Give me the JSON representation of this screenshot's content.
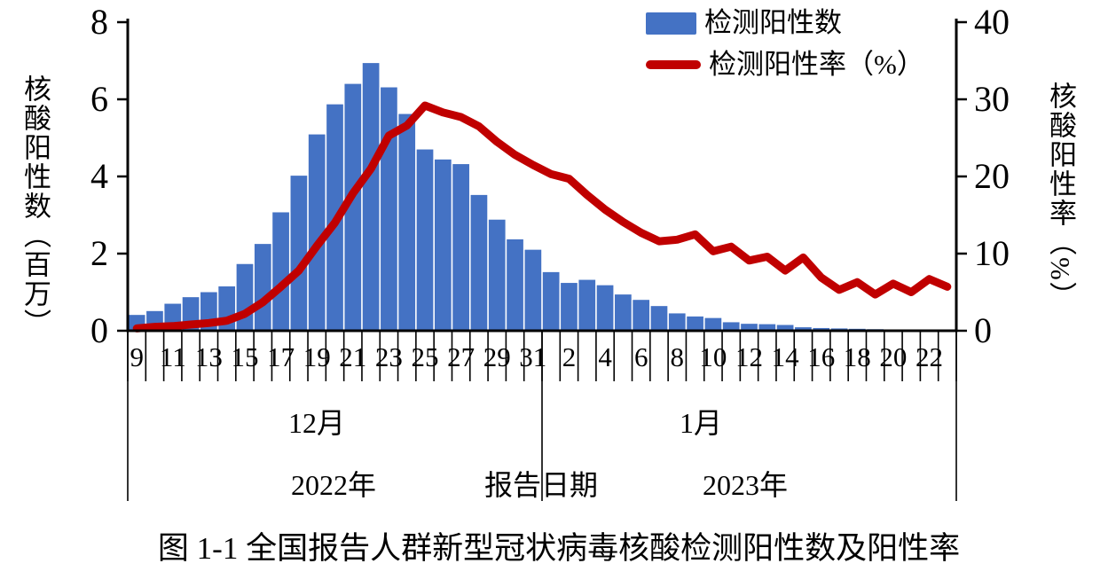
{
  "figure": {
    "caption": "图 1-1  全国报告人群新型冠状病毒核酸检测阳性数及阳性率",
    "x_axis_title": "报告日期",
    "left_axis_title": "核酸阳性数（百万）",
    "right_axis_title": "核酸阳性率（%）",
    "legend": [
      {
        "label": "检测阳性数",
        "swatch": "bar-swatch",
        "color": "#4472C4"
      },
      {
        "label": "检测阳性率（%）",
        "swatch": "line-swatch",
        "color": "#C00000"
      }
    ],
    "month_labels": [
      "12月",
      "1月"
    ],
    "year_labels": [
      "2022年",
      "2023年"
    ]
  },
  "chart_data": {
    "type": "combo (bar + line)",
    "title": "图 1-1 全国报告人群新型冠状病毒核酸检测阳性数及阳性率",
    "xlabel": "报告日期",
    "grid": false,
    "legend_position": "top-right",
    "categories": [
      "12-09",
      "12-10",
      "12-11",
      "12-12",
      "12-13",
      "12-14",
      "12-15",
      "12-16",
      "12-17",
      "12-18",
      "12-19",
      "12-20",
      "12-21",
      "12-22",
      "12-23",
      "12-24",
      "12-25",
      "12-26",
      "12-27",
      "12-28",
      "12-29",
      "12-30",
      "12-31",
      "01-01",
      "01-02",
      "01-03",
      "01-04",
      "01-05",
      "01-06",
      "01-07",
      "01-08",
      "01-09",
      "01-10",
      "01-11",
      "01-12",
      "01-13",
      "01-14",
      "01-15",
      "01-16",
      "01-17",
      "01-18",
      "01-19",
      "01-20",
      "01-21",
      "01-22",
      "01-23"
    ],
    "day_tick_labels": [
      "9",
      "",
      "11",
      "",
      "13",
      "",
      "15",
      "",
      "17",
      "",
      "19",
      "",
      "21",
      "",
      "23",
      "",
      "25",
      "",
      "27",
      "",
      "29",
      "",
      "31",
      "",
      "2",
      "",
      "4",
      "",
      "6",
      "",
      "8",
      "",
      "10",
      "",
      "12",
      "",
      "14",
      "",
      "16",
      "",
      "18",
      "",
      "20",
      "",
      "22",
      ""
    ],
    "month_groups": [
      {
        "label": "12月",
        "year": "2022年",
        "n_days": 23
      },
      {
        "label": "1月",
        "year": "2023年",
        "n_days": 23
      }
    ],
    "left_axis": {
      "title": "核酸阳性数（百万）",
      "min": 0,
      "max": 8,
      "ticks": [
        0,
        2,
        4,
        6,
        8
      ]
    },
    "right_axis": {
      "title": "核酸阳性率（%）",
      "min": 0,
      "max": 40,
      "ticks": [
        0,
        10,
        20,
        30,
        40
      ]
    },
    "series": [
      {
        "name": "检测阳性数",
        "type": "bar",
        "axis": "left",
        "unit": "百万",
        "color": "#4472C4",
        "values": [
          0.41,
          0.51,
          0.7,
          0.87,
          1.0,
          1.15,
          1.73,
          2.25,
          3.07,
          4.02,
          5.09,
          5.87,
          6.4,
          6.94,
          6.31,
          5.62,
          4.7,
          4.44,
          4.32,
          3.52,
          2.88,
          2.37,
          2.1,
          1.52,
          1.24,
          1.32,
          1.18,
          0.94,
          0.8,
          0.64,
          0.45,
          0.37,
          0.33,
          0.22,
          0.18,
          0.17,
          0.15,
          0.09,
          0.07,
          0.06,
          0.05,
          0.04,
          0.03,
          0.03,
          0.02,
          0.02
        ]
      },
      {
        "name": "检测阳性率（%）",
        "type": "line",
        "axis": "right",
        "unit": "%",
        "color": "#C00000",
        "values": [
          0.3,
          0.5,
          0.6,
          0.8,
          1.0,
          1.3,
          2.2,
          3.7,
          5.7,
          7.8,
          11.0,
          14.0,
          17.8,
          21.0,
          25.3,
          26.6,
          29.2,
          28.3,
          27.7,
          26.5,
          24.5,
          22.8,
          21.5,
          20.3,
          19.7,
          17.6,
          15.7,
          14.1,
          12.7,
          11.6,
          11.8,
          12.5,
          10.3,
          10.9,
          9.1,
          9.6,
          7.8,
          9.5,
          6.9,
          5.3,
          6.3,
          4.7,
          6.1,
          5.0,
          6.7,
          5.7
        ]
      }
    ]
  }
}
